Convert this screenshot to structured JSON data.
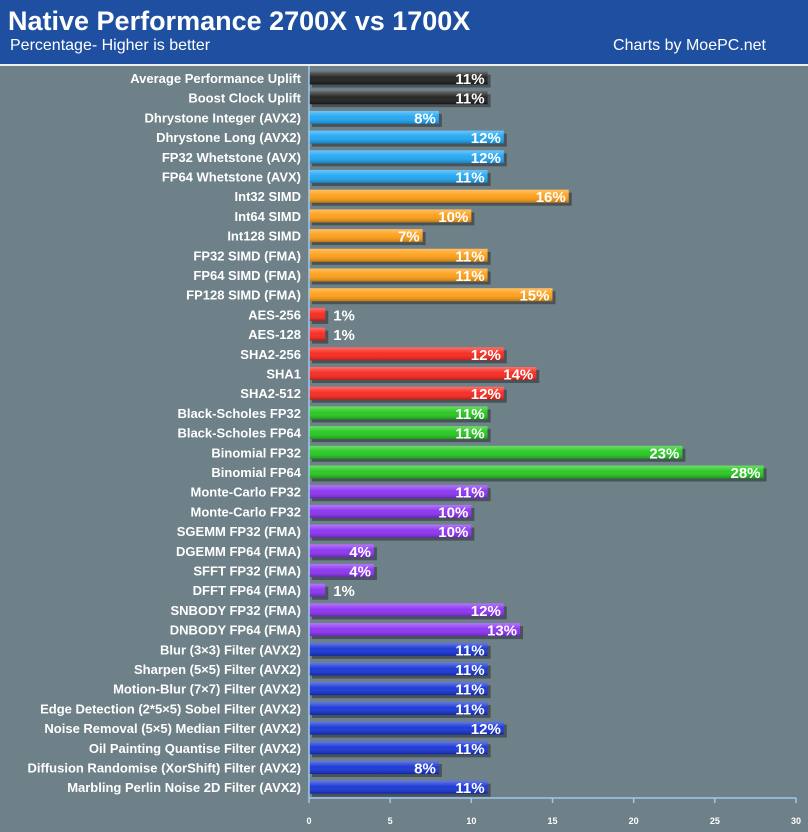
{
  "header": {
    "title": "Native Performance 2700X vs 1700X",
    "subtitle": "Percentage- Higher is better",
    "credit": "Charts by MoePC.net"
  },
  "colors": {
    "background": "#6e8088",
    "header": "#1e4fa1",
    "axis": "#9fc8f0",
    "black": "#1c1c1c",
    "sky_blue": "#1ea6f4",
    "orange": "#ff9e14",
    "red": "#f8261c",
    "green": "#22c81c",
    "purple": "#8a30f2",
    "blue": "#1432d6"
  },
  "chart_data": {
    "type": "bar",
    "orientation": "horizontal",
    "xlim": [
      0,
      30
    ],
    "xticks": [
      0,
      5,
      10,
      15,
      20,
      25,
      30
    ],
    "value_suffix": "%",
    "bars": [
      {
        "label": "Average Performance Uplift",
        "value": 11,
        "color": "black"
      },
      {
        "label": "Boost Clock Uplift",
        "value": 11,
        "color": "black"
      },
      {
        "label": "Dhrystone Integer (AVX2)",
        "value": 8,
        "color": "sky_blue"
      },
      {
        "label": "Dhrystone Long (AVX2)",
        "value": 12,
        "color": "sky_blue"
      },
      {
        "label": "FP32 Whetstone (AVX)",
        "value": 12,
        "color": "sky_blue"
      },
      {
        "label": "FP64 Whetstone (AVX)",
        "value": 11,
        "color": "sky_blue"
      },
      {
        "label": "Int32 SIMD",
        "value": 16,
        "color": "orange"
      },
      {
        "label": "Int64 SIMD",
        "value": 10,
        "color": "orange"
      },
      {
        "label": "Int128 SIMD",
        "value": 7,
        "color": "orange"
      },
      {
        "label": "FP32 SIMD (FMA)",
        "value": 11,
        "color": "orange"
      },
      {
        "label": "FP64 SIMD (FMA)",
        "value": 11,
        "color": "orange"
      },
      {
        "label": "FP128 SIMD (FMA)",
        "value": 15,
        "color": "orange"
      },
      {
        "label": "AES-256",
        "value": 1,
        "color": "red"
      },
      {
        "label": "AES-128",
        "value": 1,
        "color": "red"
      },
      {
        "label": "SHA2-256",
        "value": 12,
        "color": "red"
      },
      {
        "label": "SHA1",
        "value": 14,
        "color": "red"
      },
      {
        "label": "SHA2-512",
        "value": 12,
        "color": "red"
      },
      {
        "label": "Black-Scholes FP32",
        "value": 11,
        "color": "green"
      },
      {
        "label": "Black-Scholes FP64",
        "value": 11,
        "color": "green"
      },
      {
        "label": "Binomial FP32",
        "value": 23,
        "color": "green"
      },
      {
        "label": "Binomial FP64",
        "value": 28,
        "color": "green"
      },
      {
        "label": "Monte-Carlo FP32",
        "value": 11,
        "color": "purple"
      },
      {
        "label": "Monte-Carlo FP32",
        "value": 10,
        "color": "purple"
      },
      {
        "label": "SGEMM FP32 (FMA)",
        "value": 10,
        "color": "purple"
      },
      {
        "label": "DGEMM FP64 (FMA)",
        "value": 4,
        "color": "purple"
      },
      {
        "label": "SFFT FP32 (FMA)",
        "value": 4,
        "color": "purple"
      },
      {
        "label": "DFFT FP64 (FMA)",
        "value": 1,
        "color": "purple"
      },
      {
        "label": "SNBODY FP32 (FMA)",
        "value": 12,
        "color": "purple"
      },
      {
        "label": "DNBODY FP64 (FMA)",
        "value": 13,
        "color": "purple"
      },
      {
        "label": "Blur (3×3) Filter (AVX2)",
        "value": 11,
        "color": "blue"
      },
      {
        "label": "Sharpen (5×5) Filter (AVX2)",
        "value": 11,
        "color": "blue"
      },
      {
        "label": "Motion-Blur (7×7) Filter (AVX2)",
        "value": 11,
        "color": "blue"
      },
      {
        "label": "Edge Detection (2*5×5) Sobel Filter (AVX2)",
        "value": 11,
        "color": "blue"
      },
      {
        "label": "Noise Removal (5×5) Median Filter (AVX2)",
        "value": 12,
        "color": "blue"
      },
      {
        "label": "Oil Painting Quantise Filter (AVX2)",
        "value": 11,
        "color": "blue"
      },
      {
        "label": "Diffusion Randomise (XorShift) Filter (AVX2)",
        "value": 8,
        "color": "blue"
      },
      {
        "label": "Marbling Perlin Noise 2D Filter (AVX2)",
        "value": 11,
        "color": "blue"
      }
    ]
  }
}
